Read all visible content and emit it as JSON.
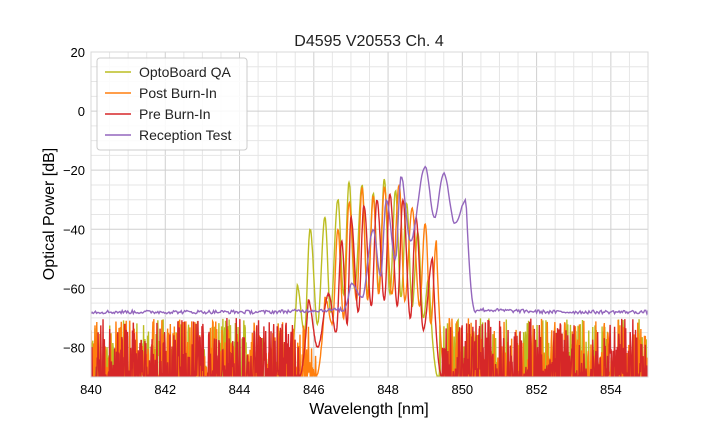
{
  "chart_data": {
    "type": "line",
    "title": "D4595 V20553 Ch. 4",
    "xlabel": "Wavelength [nm]",
    "ylabel": "Optical Power [dB]",
    "xlim": [
      840,
      855
    ],
    "ylim": [
      -90,
      20
    ],
    "xticks": [
      840,
      842,
      844,
      846,
      848,
      850,
      852,
      854
    ],
    "yticks": [
      20,
      0,
      -20,
      -40,
      -60,
      -80
    ],
    "xtick_labels": [
      "840",
      "842",
      "844",
      "846",
      "848",
      "850",
      "852",
      "854"
    ],
    "ytick_labels": [
      "20",
      "0",
      "−20",
      "−40",
      "−60",
      "−80"
    ],
    "grid": true,
    "legend_position": "top-left",
    "series": [
      {
        "name": "OptoBoard QA",
        "color": "#bcbd22",
        "noise_floor": -90,
        "peaks": [
          [
            845.55,
            -59
          ],
          [
            845.9,
            -40
          ],
          [
            846.3,
            -36
          ],
          [
            846.65,
            -30
          ],
          [
            846.95,
            -24
          ],
          [
            847.3,
            -25
          ],
          [
            847.6,
            -28
          ],
          [
            847.9,
            -23
          ],
          [
            848.2,
            -27
          ],
          [
            848.5,
            -31
          ],
          [
            848.8,
            -41
          ],
          [
            849.1,
            -56
          ]
        ],
        "dips": [
          [
            845.75,
            -75
          ],
          [
            846.1,
            -72
          ],
          [
            846.45,
            -68
          ],
          [
            846.8,
            -62
          ],
          [
            847.1,
            -60
          ],
          [
            847.45,
            -62
          ],
          [
            847.75,
            -60
          ],
          [
            848.05,
            -62
          ],
          [
            848.35,
            -63
          ],
          [
            848.65,
            -66
          ],
          [
            848.95,
            -70
          ]
        ]
      },
      {
        "name": "Post Burn-In",
        "color": "#ff7f0e",
        "noise_floor": -90,
        "peaks": [
          [
            846.3,
            -63
          ],
          [
            846.65,
            -40
          ],
          [
            846.95,
            -31
          ],
          [
            847.3,
            -26
          ],
          [
            847.6,
            -29
          ],
          [
            847.9,
            -26
          ],
          [
            848.3,
            -25
          ],
          [
            848.65,
            -33
          ],
          [
            849.0,
            -38
          ],
          [
            849.3,
            -44
          ]
        ],
        "dips": [
          [
            846.5,
            -72
          ],
          [
            846.8,
            -70
          ],
          [
            847.15,
            -64
          ],
          [
            847.45,
            -64
          ],
          [
            847.75,
            -62
          ],
          [
            848.1,
            -62
          ],
          [
            848.45,
            -64
          ],
          [
            848.85,
            -66
          ],
          [
            849.15,
            -72
          ]
        ]
      },
      {
        "name": "Pre Burn-In",
        "color": "#d62728",
        "noise_floor": -90,
        "peaks": [
          [
            845.85,
            -64
          ],
          [
            846.4,
            -62
          ],
          [
            846.75,
            -44
          ],
          [
            847.0,
            -36
          ],
          [
            847.35,
            -32
          ],
          [
            847.7,
            -30
          ],
          [
            848.05,
            -28
          ],
          [
            848.4,
            -30
          ],
          [
            848.75,
            -36
          ],
          [
            849.2,
            -50
          ]
        ],
        "dips": [
          [
            846.1,
            -80
          ],
          [
            846.6,
            -75
          ],
          [
            846.9,
            -72
          ],
          [
            847.2,
            -68
          ],
          [
            847.55,
            -66
          ],
          [
            847.9,
            -64
          ],
          [
            848.25,
            -66
          ],
          [
            848.6,
            -70
          ],
          [
            848.95,
            -74
          ]
        ]
      },
      {
        "name": "Reception Test",
        "color": "#9467bd",
        "noise_floor": -68,
        "peaks": [
          [
            847.0,
            -58
          ],
          [
            847.6,
            -40
          ],
          [
            847.95,
            -30
          ],
          [
            848.35,
            -22
          ],
          [
            849.0,
            -19
          ],
          [
            849.5,
            -21
          ],
          [
            850.1,
            -30
          ]
        ],
        "dips": [
          [
            847.3,
            -63
          ],
          [
            847.8,
            -56
          ],
          [
            848.2,
            -50
          ],
          [
            848.6,
            -44
          ],
          [
            849.25,
            -36
          ],
          [
            849.8,
            -38
          ]
        ]
      }
    ]
  }
}
